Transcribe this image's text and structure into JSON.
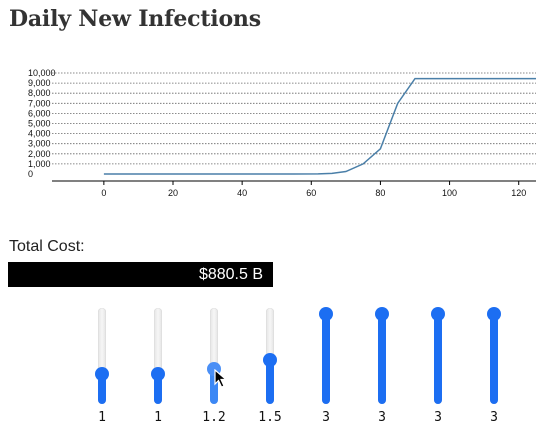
{
  "page": {
    "title": "Daily New Infections"
  },
  "chart_data": {
    "type": "line",
    "title": "Daily New Infections",
    "xlabel": "",
    "ylabel": "",
    "xlim": [
      -15,
      125
    ],
    "ylim": [
      0,
      10000
    ],
    "x_ticks": [
      0,
      20,
      40,
      60,
      80,
      100,
      120
    ],
    "x_tick_labels": [
      "0",
      "20",
      "40",
      "60",
      "80",
      "100",
      "120"
    ],
    "y_ticks": [
      0,
      1000,
      2000,
      3000,
      4000,
      5000,
      6000,
      7000,
      8000,
      9000,
      10000
    ],
    "y_tick_labels": [
      "0",
      "1,000",
      "2,000",
      "3,000",
      "4,000",
      "5,000",
      "6,000",
      "7,000",
      "8,000",
      "9,000",
      "10,000"
    ],
    "grid": "horizontal dotted",
    "line_color": "#4a7fa8",
    "series": [
      {
        "x": [
          0,
          55,
          62,
          66,
          70,
          75,
          80,
          85,
          90,
          100,
          110,
          125
        ],
        "y": [
          0,
          0,
          10,
          60,
          250,
          1000,
          2500,
          7000,
          9450,
          9450,
          9450,
          9450
        ]
      }
    ]
  },
  "cost": {
    "label": "Total Cost:",
    "value": "$880.5 B"
  },
  "sliders": [
    {
      "value_label": "1",
      "level": 0.25
    },
    {
      "value_label": "1",
      "level": 0.25
    },
    {
      "value_label": "1.2",
      "level": 0.3
    },
    {
      "value_label": "1.5",
      "level": 0.4
    },
    {
      "value_label": "3",
      "level": 1.0
    },
    {
      "value_label": "3",
      "level": 1.0
    },
    {
      "value_label": "3",
      "level": 1.0
    },
    {
      "value_label": "3",
      "level": 1.0
    }
  ],
  "accent_color": "#1c6ef2"
}
